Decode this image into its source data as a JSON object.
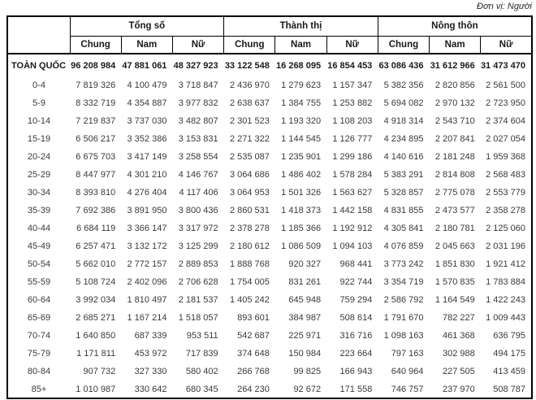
{
  "unit_note": "Đơn vị: Người",
  "colors": {
    "background": "#ffffff",
    "border": "#000000",
    "body_text": "#3a3a3a",
    "header_text": "#1a1a1a"
  },
  "table": {
    "column_groups": [
      {
        "label": "Tổng số",
        "columns": [
          "Chung",
          "Nam",
          "Nữ"
        ]
      },
      {
        "label": "Thành thị",
        "columns": [
          "Chung",
          "Nam",
          "Nữ"
        ]
      },
      {
        "label": "Nông thôn",
        "columns": [
          "Chung",
          "Nam",
          "Nữ"
        ]
      }
    ],
    "rows": [
      {
        "label": "TOÀN QUỐC",
        "bold": true,
        "values": [
          "96 208 984",
          "47 881 061",
          "48 327 923",
          "33 122 548",
          "16 268 095",
          "16 854 453",
          "63 086 436",
          "31 612 966",
          "31 473 470"
        ]
      },
      {
        "label": "0-4",
        "values": [
          "7 819 326",
          "4 100 479",
          "3 718 847",
          "2 436 970",
          "1 279 623",
          "1 157 347",
          "5 382 356",
          "2 820 856",
          "2 561 500"
        ]
      },
      {
        "label": "5-9",
        "values": [
          "8 332 719",
          "4 354 887",
          "3 977 832",
          "2 638 637",
          "1 384 755",
          "1 253 882",
          "5 694 082",
          "2 970 132",
          "2 723 950"
        ]
      },
      {
        "label": "10-14",
        "values": [
          "7 219 837",
          "3 737 030",
          "3 482 807",
          "2 301 523",
          "1 193 320",
          "1 108 203",
          "4 918 314",
          "2 543 710",
          "2 374 604"
        ]
      },
      {
        "label": "15-19",
        "values": [
          "6 506 217",
          "3 352 386",
          "3 153 831",
          "2 271 322",
          "1 144 545",
          "1 126 777",
          "4 234 895",
          "2 207 841",
          "2 027 054"
        ]
      },
      {
        "label": "20-24",
        "values": [
          "6 675 703",
          "3 417 149",
          "3 258 554",
          "2 535 087",
          "1 235 901",
          "1 299 186",
          "4 140 616",
          "2 181 248",
          "1 959 368"
        ]
      },
      {
        "label": "25-29",
        "values": [
          "8 447 977",
          "4 301 210",
          "4 146 767",
          "3 064 686",
          "1 486 402",
          "1 578 284",
          "5 383 291",
          "2 814 808",
          "2 568 483"
        ]
      },
      {
        "label": "30-34",
        "values": [
          "8 393 810",
          "4 276 404",
          "4 117 406",
          "3 064 953",
          "1 501 326",
          "1 563 627",
          "5 328 857",
          "2 775 078",
          "2 553 779"
        ]
      },
      {
        "label": "35-39",
        "values": [
          "7 692 386",
          "3 891 950",
          "3 800 436",
          "2 860 531",
          "1 418 373",
          "1 442 158",
          "4 831 855",
          "2 473 577",
          "2 358 278"
        ]
      },
      {
        "label": "40-44",
        "values": [
          "6 684 119",
          "3 366 147",
          "3 317 972",
          "2 378 278",
          "1 185 366",
          "1 192 912",
          "4 305 841",
          "2 180 781",
          "2 125 060"
        ]
      },
      {
        "label": "45-49",
        "values": [
          "6 257 471",
          "3 132 172",
          "3 125 299",
          "2 180 612",
          "1 086 509",
          "1 094 103",
          "4 076 859",
          "2 045 663",
          "2 031 196"
        ]
      },
      {
        "label": "50-54",
        "values": [
          "5 662 010",
          "2 772 157",
          "2 889 853",
          "1 888 768",
          "920 327",
          "968 441",
          "3 773 242",
          "1 851 830",
          "1 921 412"
        ]
      },
      {
        "label": "55-59",
        "values": [
          "5 108 724",
          "2 402 096",
          "2 706 628",
          "1 754 005",
          "831 261",
          "922 744",
          "3 354 719",
          "1 570 835",
          "1 783 884"
        ]
      },
      {
        "label": "60-64",
        "values": [
          "3 992 034",
          "1 810 497",
          "2 181 537",
          "1 405 242",
          "645 948",
          "759 294",
          "2 586 792",
          "1 164 549",
          "1 422 243"
        ]
      },
      {
        "label": "65-69",
        "values": [
          "2 685 271",
          "1 167 214",
          "1 518 057",
          "893 601",
          "384 987",
          "508 614",
          "1 791 670",
          "782 227",
          "1 009 443"
        ]
      },
      {
        "label": "70-74",
        "values": [
          "1 640 850",
          "687 339",
          "953 511",
          "542 687",
          "225 971",
          "316 716",
          "1 098 163",
          "461 368",
          "636 795"
        ]
      },
      {
        "label": "75-79",
        "values": [
          "1 171 811",
          "453 972",
          "717 839",
          "374 648",
          "150 984",
          "223 664",
          "797 163",
          "302 988",
          "494 175"
        ]
      },
      {
        "label": "80-84",
        "values": [
          "907 732",
          "327 330",
          "580 402",
          "266 768",
          "99 825",
          "166 943",
          "640 964",
          "227 505",
          "413 459"
        ]
      },
      {
        "label": "85+",
        "values": [
          "1 010 987",
          "330 642",
          "680 345",
          "264 230",
          "92 672",
          "171 558",
          "746 757",
          "237 970",
          "508 787"
        ]
      }
    ]
  }
}
